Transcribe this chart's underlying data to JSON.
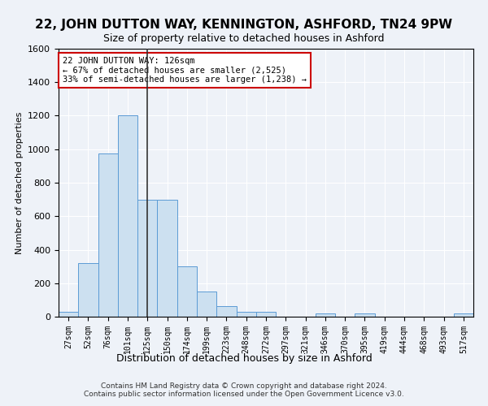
{
  "title": "22, JOHN DUTTON WAY, KENNINGTON, ASHFORD, TN24 9PW",
  "subtitle": "Size of property relative to detached houses in Ashford",
  "xlabel": "Distribution of detached houses by size in Ashford",
  "ylabel": "Number of detached properties",
  "categories": [
    "27sqm",
    "52sqm",
    "76sqm",
    "101sqm",
    "125sqm",
    "150sqm",
    "174sqm",
    "199sqm",
    "223sqm",
    "248sqm",
    "272sqm",
    "297sqm",
    "321sqm",
    "346sqm",
    "370sqm",
    "395sqm",
    "419sqm",
    "444sqm",
    "468sqm",
    "493sqm",
    "517sqm"
  ],
  "values": [
    30,
    320,
    975,
    1200,
    700,
    700,
    300,
    150,
    65,
    30,
    30,
    0,
    0,
    18,
    0,
    18,
    0,
    0,
    0,
    0,
    18
  ],
  "bar_color": "#cce0f0",
  "bar_edge_color": "#5b9bd5",
  "annotation_text": "22 JOHN DUTTON WAY: 126sqm\n← 67% of detached houses are smaller (2,525)\n33% of semi-detached houses are larger (1,238) →",
  "annotation_box_color": "white",
  "annotation_box_edge_color": "#cc0000",
  "vline_x_index": 4,
  "ylim": [
    0,
    1600
  ],
  "footnote": "Contains HM Land Registry data © Crown copyright and database right 2024.\nContains public sector information licensed under the Open Government Licence v3.0.",
  "bg_color": "#eef2f8",
  "plot_bg_color": "#eef2f8",
  "grid_color": "#ffffff",
  "title_fontsize": 11,
  "subtitle_fontsize": 9
}
